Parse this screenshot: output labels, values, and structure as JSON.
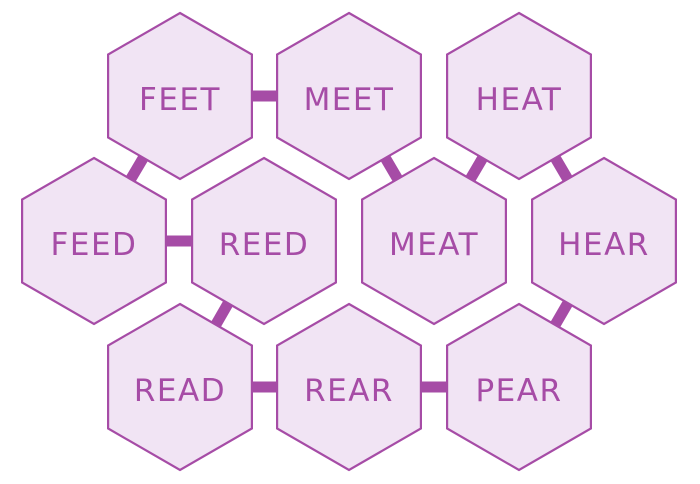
{
  "colors": {
    "fill": "#f1e4f4",
    "stroke": "#a64ca6",
    "text": "#a64ca6",
    "background": "#ffffff"
  },
  "words": [
    "FEET",
    "MEET",
    "HEAT",
    "FEED",
    "REED",
    "MEAT",
    "HEAR",
    "READ",
    "REAR",
    "PEAR"
  ],
  "links": [
    [
      "FEET",
      "MEET"
    ],
    [
      "FEET",
      "FEED"
    ],
    [
      "FEED",
      "REED"
    ],
    [
      "REED",
      "READ"
    ],
    [
      "READ",
      "REAR"
    ],
    [
      "REAR",
      "PEAR"
    ],
    [
      "PEAR",
      "HEAR"
    ],
    [
      "HEAR",
      "HEAT"
    ],
    [
      "HEAT",
      "MEAT"
    ],
    [
      "MEAT",
      "MEET"
    ]
  ]
}
